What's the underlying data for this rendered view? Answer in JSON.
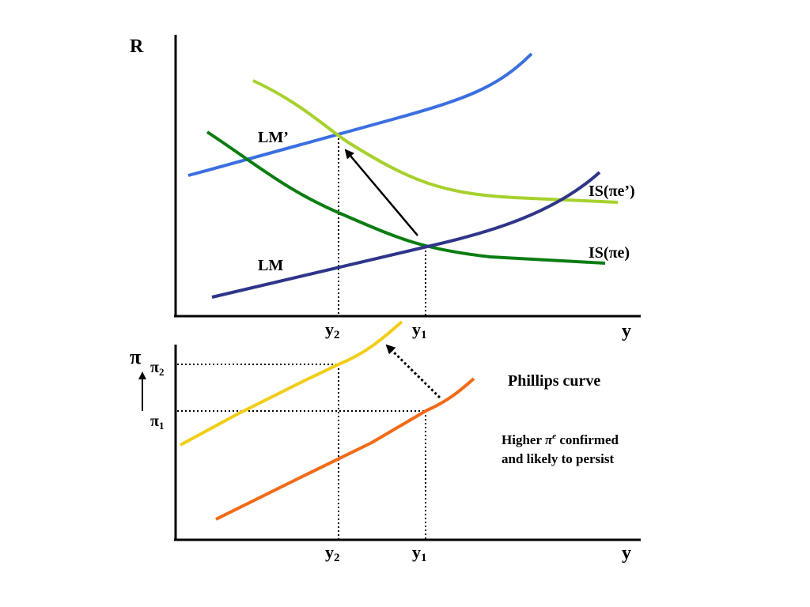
{
  "top_panel": {
    "y_axis_label": "R",
    "x_axis_label": "y",
    "curves": {
      "lm_prime": {
        "label": "LM’",
        "color": "#3a6fe0"
      },
      "lm": {
        "label": "LM",
        "color": "#2e3589"
      },
      "is_pie": {
        "label": "IS(πe)",
        "color": "#0a7d12"
      },
      "is_pie_prime": {
        "label": "IS(πe’)",
        "color": "#a6d12d"
      }
    },
    "ticks": {
      "y2_main": "y",
      "y2_sub": "2",
      "y1_main": "y",
      "y1_sub": "1"
    }
  },
  "bottom_panel": {
    "y_axis_label": "π",
    "x_axis_label": "y",
    "curves": {
      "phillips_upper": {
        "color": "#f2cd15"
      },
      "phillips_lower": {
        "color": "#f26a16"
      }
    },
    "pi2_main": "π",
    "pi2_sub": "2",
    "pi1_main": "π",
    "pi1_sub": "1",
    "ticks": {
      "y2_main": "y",
      "y2_sub": "2",
      "y1_main": "y",
      "y1_sub": "1"
    },
    "phillips_label": "Phillips curve",
    "note_line1_a": "Higher ",
    "note_line1_pi": "π",
    "note_line1_sup": "e",
    "note_line1_b": " confirmed",
    "note_line2": "and likely to persist"
  }
}
